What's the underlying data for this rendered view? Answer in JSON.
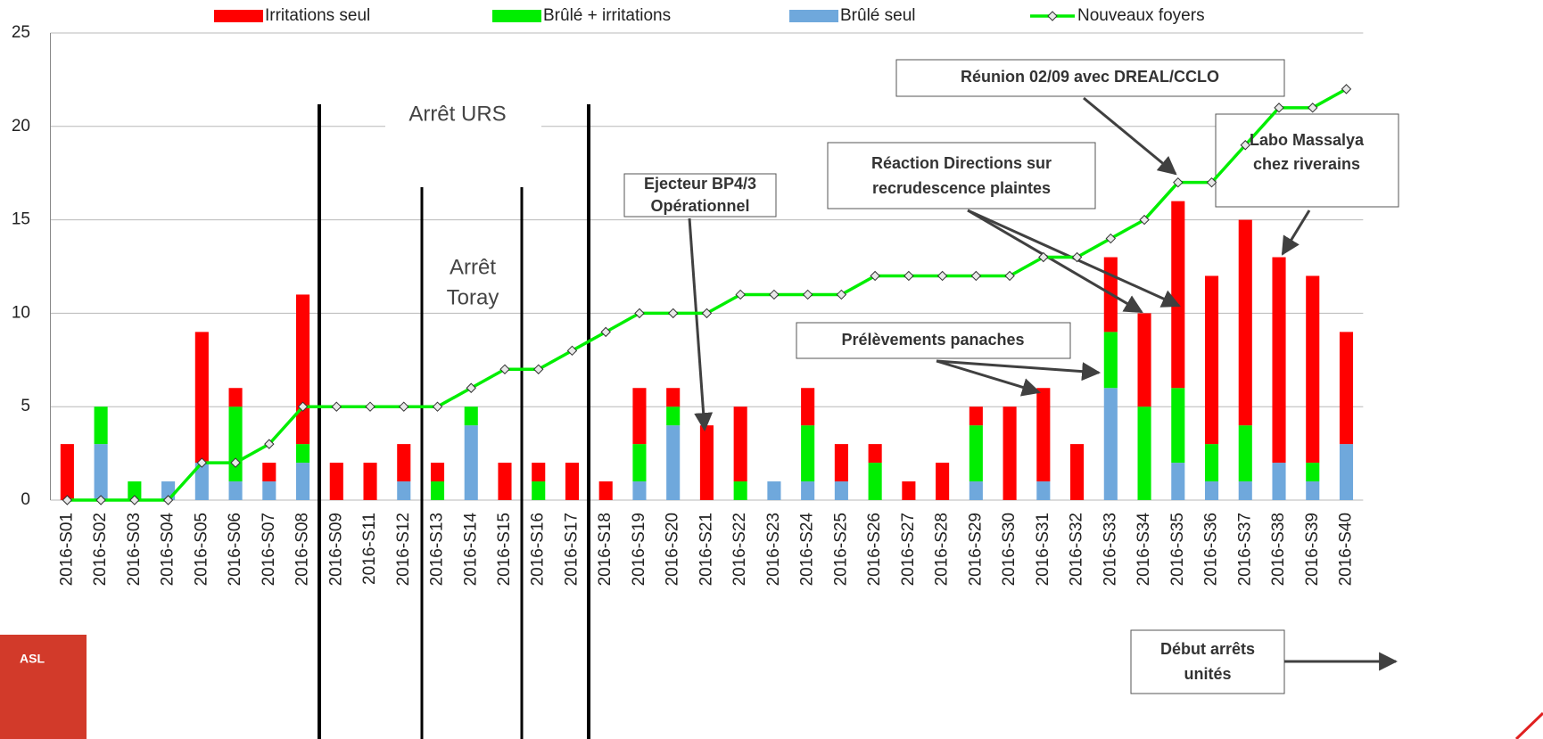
{
  "chart_data": {
    "type": "bar",
    "stacked": true,
    "categories": [
      "2016-S01",
      "2016-S02",
      "2016-S03",
      "2016-S04",
      "2016-S05",
      "2016-S06",
      "2016-S07",
      "2016-S08",
      "2016-S09",
      "2016-S11",
      "2016-S12",
      "2016-S13",
      "2016-S14",
      "2016-S15",
      "2016-S16",
      "2016-S17",
      "2016-S18",
      "2016-S19",
      "2016-S20",
      "2016-S21",
      "2016-S22",
      "2016-S23",
      "2016-S24",
      "2016-S25",
      "2016-S26",
      "2016-S27",
      "2016-S28",
      "2016-S29",
      "2016-S30",
      "2016-S31",
      "2016-S32",
      "2016-S33",
      "2016-S34",
      "2016-S35",
      "2016-S36",
      "2016-S37",
      "2016-S38",
      "2016-S39",
      "2016-S40"
    ],
    "series": [
      {
        "name": "Irritations seul",
        "type": "bar",
        "color": "#ff0000",
        "values": [
          3,
          0,
          0,
          0,
          7,
          1,
          1,
          8,
          2,
          2,
          2,
          1,
          0,
          2,
          1,
          2,
          1,
          3,
          1,
          4,
          4,
          0,
          2,
          2,
          1,
          1,
          2,
          1,
          5,
          5,
          3,
          4,
          5,
          10,
          9,
          11,
          11,
          10,
          6
        ]
      },
      {
        "name": "Brûlé + irritations",
        "type": "bar",
        "color": "#00ee00",
        "values": [
          0,
          2,
          1,
          0,
          0,
          4,
          0,
          1,
          0,
          0,
          0,
          1,
          1,
          0,
          1,
          0,
          0,
          2,
          1,
          0,
          1,
          0,
          3,
          0,
          2,
          0,
          0,
          3,
          0,
          0,
          0,
          3,
          5,
          4,
          2,
          3,
          0,
          1,
          0
        ]
      },
      {
        "name": "Brûlé seul",
        "type": "bar",
        "color": "#6fa8dc",
        "values": [
          0,
          3,
          0,
          1,
          2,
          1,
          1,
          2,
          0,
          0,
          1,
          0,
          4,
          0,
          0,
          0,
          0,
          1,
          4,
          0,
          0,
          1,
          1,
          1,
          0,
          0,
          0,
          1,
          0,
          1,
          0,
          6,
          0,
          2,
          1,
          1,
          2,
          1,
          3
        ]
      },
      {
        "name": "Nouveaux foyers",
        "type": "line",
        "color": "#00ee00",
        "values": [
          0,
          0,
          0,
          0,
          2,
          2,
          3,
          5,
          5,
          5,
          5,
          5,
          6,
          7,
          7,
          8,
          9,
          10,
          10,
          10,
          11,
          11,
          11,
          11,
          12,
          12,
          12,
          12,
          12,
          13,
          13,
          14,
          15,
          17,
          17,
          19,
          21,
          21,
          22
        ]
      }
    ],
    "ylim": [
      0,
      25
    ],
    "yticks": [
      0,
      5,
      10,
      15,
      20,
      25
    ],
    "grid": true,
    "legend": "top",
    "annotations": [
      {
        "lines": [
          "Arrêt URS"
        ]
      },
      {
        "lines": [
          "Arrêt",
          "Toray"
        ]
      },
      {
        "lines": [
          "Ejecteur BP4/3",
          "Opérationnel"
        ]
      },
      {
        "lines": [
          "Réunion 02/09 avec DREAL/CCLO"
        ]
      },
      {
        "lines": [
          "Réaction Directions sur",
          "recrudescence plaintes"
        ]
      },
      {
        "lines": [
          "Labo Massalya",
          "chez riverains"
        ]
      },
      {
        "lines": [
          "Prélèvements panaches"
        ]
      },
      {
        "lines": [
          "Début arrêts",
          "unités"
        ]
      }
    ],
    "logo": "ASL"
  }
}
